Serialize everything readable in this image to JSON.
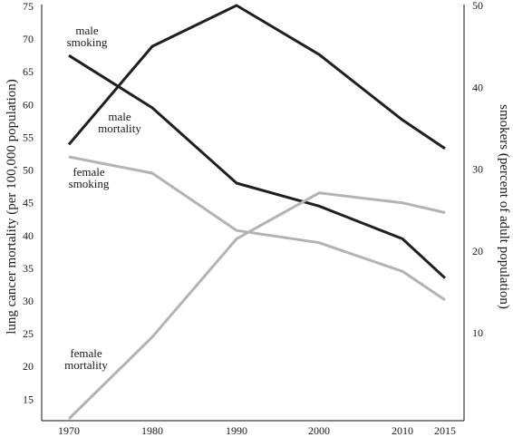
{
  "chart_data": {
    "type": "line",
    "xlabel": "",
    "x": [
      1970,
      1980,
      1990,
      2000,
      2010,
      2015
    ],
    "x_tick_labels": [
      "1970",
      "1980",
      "1990",
      "2000",
      "2010",
      "2015"
    ],
    "left_axis": {
      "label": "lung cancer mortality (per 100,000 population)",
      "range": [
        11,
        75
      ],
      "ticks": [
        15,
        20,
        25,
        30,
        35,
        40,
        45,
        50,
        55,
        60,
        65,
        70,
        75
      ]
    },
    "right_axis": {
      "label": "smokers (percent of adult population)",
      "range": [
        0,
        50
      ],
      "ticks": [
        10,
        20,
        30,
        40,
        50
      ]
    },
    "grid": false,
    "series": [
      {
        "name": "male smoking",
        "axis": "right",
        "color": "#1f1f1f",
        "values": [
          33,
          45,
          50,
          44,
          36,
          32.5
        ],
        "label_lines": [
          "male",
          "smoking"
        ]
      },
      {
        "name": "male mortality",
        "axis": "left",
        "color": "#1f1f1f",
        "values": [
          67.5,
          59.5,
          48,
          44.5,
          39.5,
          33.5
        ],
        "label_lines": [
          "male",
          "mortality"
        ]
      },
      {
        "name": "female smoking",
        "axis": "right",
        "color": "#b3b3b3",
        "values": [
          31.5,
          29.5,
          22.5,
          21,
          17.5,
          14
        ],
        "label_lines": [
          "female",
          "smoking"
        ]
      },
      {
        "name": "female mortality",
        "axis": "left",
        "color": "#b3b3b3",
        "values": [
          12,
          24.5,
          39.5,
          46.5,
          45,
          43.5
        ],
        "label_lines": [
          "female",
          "mortality"
        ]
      }
    ]
  }
}
